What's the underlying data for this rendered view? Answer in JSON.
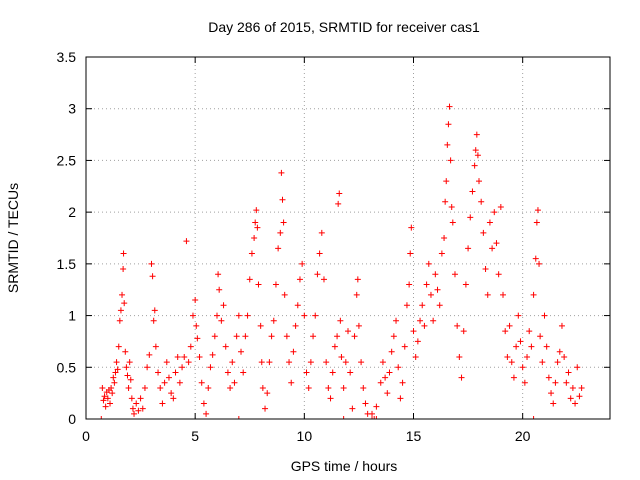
{
  "chart_data": {
    "type": "scatter",
    "title": "Day 286 of 2015, SRMTID for receiver cas1",
    "xlabel": "GPS time / hours",
    "ylabel": "SRMTID / TECUs",
    "xlim": [
      0,
      24
    ],
    "ylim": [
      0,
      3.5
    ],
    "x_ticks": [
      0,
      5,
      10,
      15,
      20
    ],
    "x_tick_labels": [
      "0",
      "5",
      "10",
      "15",
      "20"
    ],
    "y_ticks": [
      0,
      0.5,
      1,
      1.5,
      2,
      2.5,
      3,
      3.5
    ],
    "y_tick_labels": [
      "0",
      "0.5",
      "1",
      "1.5",
      "2",
      "2.5",
      "3",
      "3.5"
    ],
    "grid": true,
    "series": [
      {
        "name": "SRMTID",
        "marker": "plus",
        "color": "#ff0000",
        "points": [
          [
            0.75,
            0.3
          ],
          [
            0.8,
            0.18
          ],
          [
            0.85,
            0.22
          ],
          [
            0.9,
            0.12
          ],
          [
            0.95,
            0.26
          ],
          [
            1.0,
            0.2
          ],
          [
            1.05,
            0.28
          ],
          [
            1.1,
            0.15
          ],
          [
            1.15,
            0.3
          ],
          [
            1.2,
            0.25
          ],
          [
            1.25,
            0.4
          ],
          [
            1.3,
            0.35
          ],
          [
            1.35,
            0.45
          ],
          [
            1.4,
            0.55
          ],
          [
            1.45,
            0.48
          ],
          [
            1.5,
            0.7
          ],
          [
            1.55,
            0.95
          ],
          [
            1.6,
            1.05
          ],
          [
            1.65,
            1.2
          ],
          [
            1.7,
            1.45
          ],
          [
            1.72,
            1.6
          ],
          [
            1.75,
            1.12
          ],
          [
            1.8,
            0.65
          ],
          [
            1.85,
            0.5
          ],
          [
            1.9,
            0.42
          ],
          [
            1.95,
            0.3
          ],
          [
            2.0,
            0.55
          ],
          [
            2.05,
            0.38
          ],
          [
            2.1,
            0.2
          ],
          [
            2.15,
            0.1
          ],
          [
            2.2,
            0.05
          ],
          [
            2.3,
            0.15
          ],
          [
            2.4,
            0.08
          ],
          [
            2.5,
            0.2
          ],
          [
            2.6,
            0.1
          ],
          [
            2.7,
            0.3
          ],
          [
            2.8,
            0.5
          ],
          [
            2.9,
            0.62
          ],
          [
            3.0,
            1.5
          ],
          [
            3.05,
            1.38
          ],
          [
            3.1,
            0.95
          ],
          [
            3.15,
            1.05
          ],
          [
            3.2,
            0.7
          ],
          [
            3.3,
            0.45
          ],
          [
            3.4,
            0.3
          ],
          [
            3.5,
            0.15
          ],
          [
            3.6,
            0.35
          ],
          [
            3.7,
            0.55
          ],
          [
            3.8,
            0.4
          ],
          [
            3.9,
            0.25
          ],
          [
            4.0,
            0.2
          ],
          [
            4.1,
            0.45
          ],
          [
            4.2,
            0.6
          ],
          [
            4.3,
            0.35
          ],
          [
            4.4,
            0.5
          ],
          [
            4.5,
            0.6
          ],
          [
            4.6,
            1.72
          ],
          [
            4.7,
            0.55
          ],
          [
            4.8,
            0.7
          ],
          [
            4.9,
            1.0
          ],
          [
            5.0,
            1.15
          ],
          [
            5.05,
            0.9
          ],
          [
            5.1,
            0.78
          ],
          [
            5.2,
            0.6
          ],
          [
            5.3,
            0.35
          ],
          [
            5.4,
            0.15
          ],
          [
            5.5,
            0.05
          ],
          [
            5.6,
            0.3
          ],
          [
            5.7,
            0.5
          ],
          [
            5.8,
            0.62
          ],
          [
            5.9,
            0.8
          ],
          [
            6.0,
            1.0
          ],
          [
            6.05,
            1.4
          ],
          [
            6.1,
            1.25
          ],
          [
            6.2,
            0.95
          ],
          [
            6.3,
            1.1
          ],
          [
            6.4,
            0.7
          ],
          [
            6.5,
            0.45
          ],
          [
            6.6,
            0.3
          ],
          [
            6.7,
            0.55
          ],
          [
            6.8,
            0.35
          ],
          [
            6.9,
            0.8
          ],
          [
            7.0,
            1.0
          ],
          [
            7.1,
            0.65
          ],
          [
            7.2,
            0.45
          ],
          [
            7.3,
            0.8
          ],
          [
            7.4,
            1.0
          ],
          [
            7.5,
            1.35
          ],
          [
            7.6,
            1.6
          ],
          [
            7.7,
            1.75
          ],
          [
            7.75,
            1.9
          ],
          [
            7.8,
            2.02
          ],
          [
            7.85,
            1.85
          ],
          [
            7.9,
            1.3
          ],
          [
            8.0,
            0.9
          ],
          [
            8.05,
            0.55
          ],
          [
            8.1,
            0.3
          ],
          [
            8.2,
            0.1
          ],
          [
            8.3,
            0.25
          ],
          [
            8.4,
            0.55
          ],
          [
            8.5,
            0.8
          ],
          [
            8.6,
            0.95
          ],
          [
            8.7,
            1.3
          ],
          [
            8.8,
            1.65
          ],
          [
            8.9,
            1.8
          ],
          [
            8.95,
            2.38
          ],
          [
            9.0,
            2.12
          ],
          [
            9.05,
            1.9
          ],
          [
            9.1,
            1.2
          ],
          [
            9.2,
            0.8
          ],
          [
            9.3,
            0.55
          ],
          [
            9.4,
            0.35
          ],
          [
            9.5,
            0.65
          ],
          [
            9.6,
            0.9
          ],
          [
            9.7,
            1.1
          ],
          [
            9.8,
            1.35
          ],
          [
            9.9,
            1.5
          ],
          [
            10.0,
            1.0
          ],
          [
            10.1,
            0.45
          ],
          [
            10.2,
            0.3
          ],
          [
            10.3,
            0.55
          ],
          [
            10.4,
            0.8
          ],
          [
            10.5,
            1.0
          ],
          [
            10.6,
            1.4
          ],
          [
            10.7,
            1.6
          ],
          [
            10.8,
            1.8
          ],
          [
            10.9,
            1.35
          ],
          [
            11.0,
            0.55
          ],
          [
            11.1,
            0.3
          ],
          [
            11.2,
            0.2
          ],
          [
            11.3,
            0.45
          ],
          [
            11.4,
            0.7
          ],
          [
            11.5,
            0.8
          ],
          [
            11.55,
            2.08
          ],
          [
            11.6,
            2.18
          ],
          [
            11.65,
            0.95
          ],
          [
            11.7,
            0.6
          ],
          [
            11.8,
            0.3
          ],
          [
            11.9,
            0.55
          ],
          [
            12.0,
            0.85
          ],
          [
            12.1,
            0.45
          ],
          [
            12.2,
            0.1
          ],
          [
            12.3,
            0.8
          ],
          [
            12.4,
            1.2
          ],
          [
            12.45,
            1.35
          ],
          [
            12.5,
            0.9
          ],
          [
            12.6,
            0.55
          ],
          [
            12.7,
            0.3
          ],
          [
            12.8,
            0.15
          ],
          [
            12.9,
            0.05
          ],
          [
            13.1,
            0.05
          ],
          [
            13.3,
            0.12
          ],
          [
            13.5,
            0.35
          ],
          [
            13.6,
            0.55
          ],
          [
            13.7,
            0.4
          ],
          [
            13.8,
            0.25
          ],
          [
            13.9,
            0.45
          ],
          [
            14.0,
            0.65
          ],
          [
            14.1,
            0.8
          ],
          [
            14.2,
            0.95
          ],
          [
            14.3,
            0.5
          ],
          [
            14.4,
            0.2
          ],
          [
            14.5,
            0.35
          ],
          [
            14.6,
            0.7
          ],
          [
            14.7,
            1.1
          ],
          [
            14.8,
            1.3
          ],
          [
            14.85,
            1.6
          ],
          [
            14.9,
            1.85
          ],
          [
            15.0,
            0.85
          ],
          [
            15.1,
            0.6
          ],
          [
            15.2,
            0.75
          ],
          [
            15.3,
            0.95
          ],
          [
            15.4,
            1.1
          ],
          [
            15.5,
            0.9
          ],
          [
            15.6,
            1.3
          ],
          [
            15.7,
            1.5
          ],
          [
            15.8,
            1.2
          ],
          [
            15.9,
            0.95
          ],
          [
            16.0,
            1.4
          ],
          [
            16.1,
            1.25
          ],
          [
            16.2,
            1.1
          ],
          [
            16.3,
            1.6
          ],
          [
            16.4,
            1.75
          ],
          [
            16.45,
            2.1
          ],
          [
            16.5,
            2.3
          ],
          [
            16.55,
            2.65
          ],
          [
            16.6,
            2.85
          ],
          [
            16.65,
            3.02
          ],
          [
            16.7,
            2.5
          ],
          [
            16.75,
            2.05
          ],
          [
            16.8,
            1.9
          ],
          [
            16.9,
            1.4
          ],
          [
            17.0,
            0.9
          ],
          [
            17.1,
            0.6
          ],
          [
            17.2,
            0.4
          ],
          [
            17.3,
            0.85
          ],
          [
            17.4,
            1.3
          ],
          [
            17.5,
            1.65
          ],
          [
            17.6,
            1.95
          ],
          [
            17.7,
            2.2
          ],
          [
            17.8,
            2.45
          ],
          [
            17.85,
            2.6
          ],
          [
            17.9,
            2.75
          ],
          [
            17.95,
            2.55
          ],
          [
            18.0,
            2.3
          ],
          [
            18.1,
            2.1
          ],
          [
            18.2,
            1.8
          ],
          [
            18.3,
            1.45
          ],
          [
            18.4,
            1.2
          ],
          [
            18.5,
            1.9
          ],
          [
            18.6,
            1.65
          ],
          [
            18.7,
            2.0
          ],
          [
            18.8,
            1.7
          ],
          [
            18.9,
            1.4
          ],
          [
            19.0,
            2.05
          ],
          [
            19.1,
            1.2
          ],
          [
            19.2,
            0.85
          ],
          [
            19.3,
            0.6
          ],
          [
            19.4,
            0.9
          ],
          [
            19.5,
            0.55
          ],
          [
            19.6,
            0.4
          ],
          [
            19.7,
            0.7
          ],
          [
            19.8,
            1.0
          ],
          [
            19.9,
            0.75
          ],
          [
            20.0,
            0.5
          ],
          [
            20.1,
            0.35
          ],
          [
            20.2,
            0.6
          ],
          [
            20.3,
            0.85
          ],
          [
            20.4,
            0.7
          ],
          [
            20.5,
            1.2
          ],
          [
            20.6,
            1.55
          ],
          [
            20.65,
            1.9
          ],
          [
            20.7,
            2.02
          ],
          [
            20.75,
            1.5
          ],
          [
            20.8,
            0.8
          ],
          [
            20.9,
            0.55
          ],
          [
            21.0,
            1.0
          ],
          [
            21.1,
            0.7
          ],
          [
            21.2,
            0.4
          ],
          [
            21.3,
            0.25
          ],
          [
            21.4,
            0.15
          ],
          [
            21.5,
            0.35
          ],
          [
            21.6,
            0.55
          ],
          [
            21.7,
            0.65
          ],
          [
            21.8,
            0.9
          ],
          [
            21.9,
            0.6
          ],
          [
            22.0,
            0.35
          ],
          [
            22.1,
            0.45
          ],
          [
            22.2,
            0.2
          ],
          [
            22.3,
            0.3
          ],
          [
            22.4,
            0.15
          ],
          [
            22.5,
            0.5
          ],
          [
            22.6,
            0.22
          ],
          [
            22.7,
            0.3
          ]
        ]
      }
    ],
    "zero_markers_x": [
      0.7,
      7.0,
      11.8,
      13.1,
      13.2,
      13.3,
      20.5
    ]
  }
}
